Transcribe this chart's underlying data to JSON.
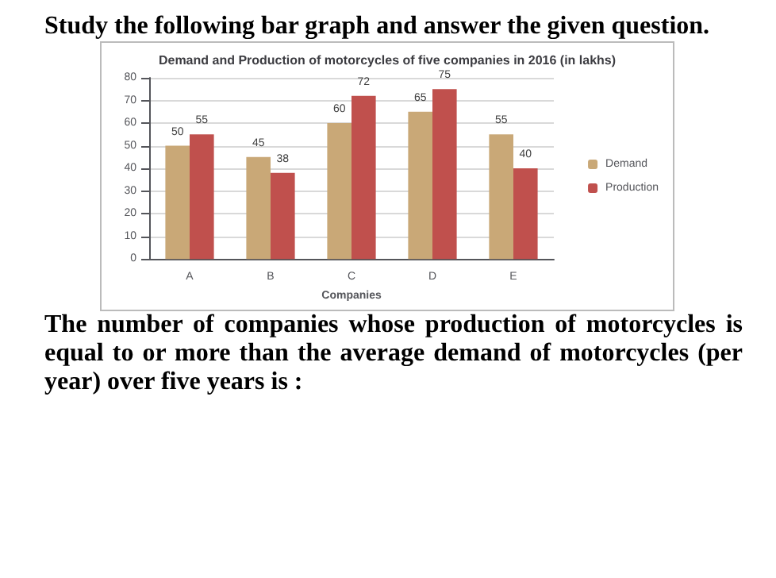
{
  "chart_data": {
    "type": "bar",
    "title": "Demand and Production of motorcycles of five companies in 2016 (in lakhs)",
    "xlabel": "Companies",
    "categories": [
      "A",
      "B",
      "C",
      "D",
      "E"
    ],
    "series": [
      {
        "name": "Demand",
        "color": "#c9a877",
        "values": [
          50,
          45,
          60,
          65,
          55
        ]
      },
      {
        "name": "Production",
        "color": "#c0504d",
        "values": [
          55,
          38,
          72,
          75,
          40
        ]
      }
    ],
    "ylim": [
      0,
      80
    ],
    "yticks": [
      0,
      10,
      20,
      30,
      40,
      50,
      60,
      70,
      80
    ],
    "grid": "y",
    "legend": "right",
    "data_labels": true,
    "annotations": [
      "Study the following bar graph and answer the given question.",
      "The number of companies whose production of motorcycles is equal to or more than the average demand of motorcycles (per year) over five years is :"
    ]
  }
}
